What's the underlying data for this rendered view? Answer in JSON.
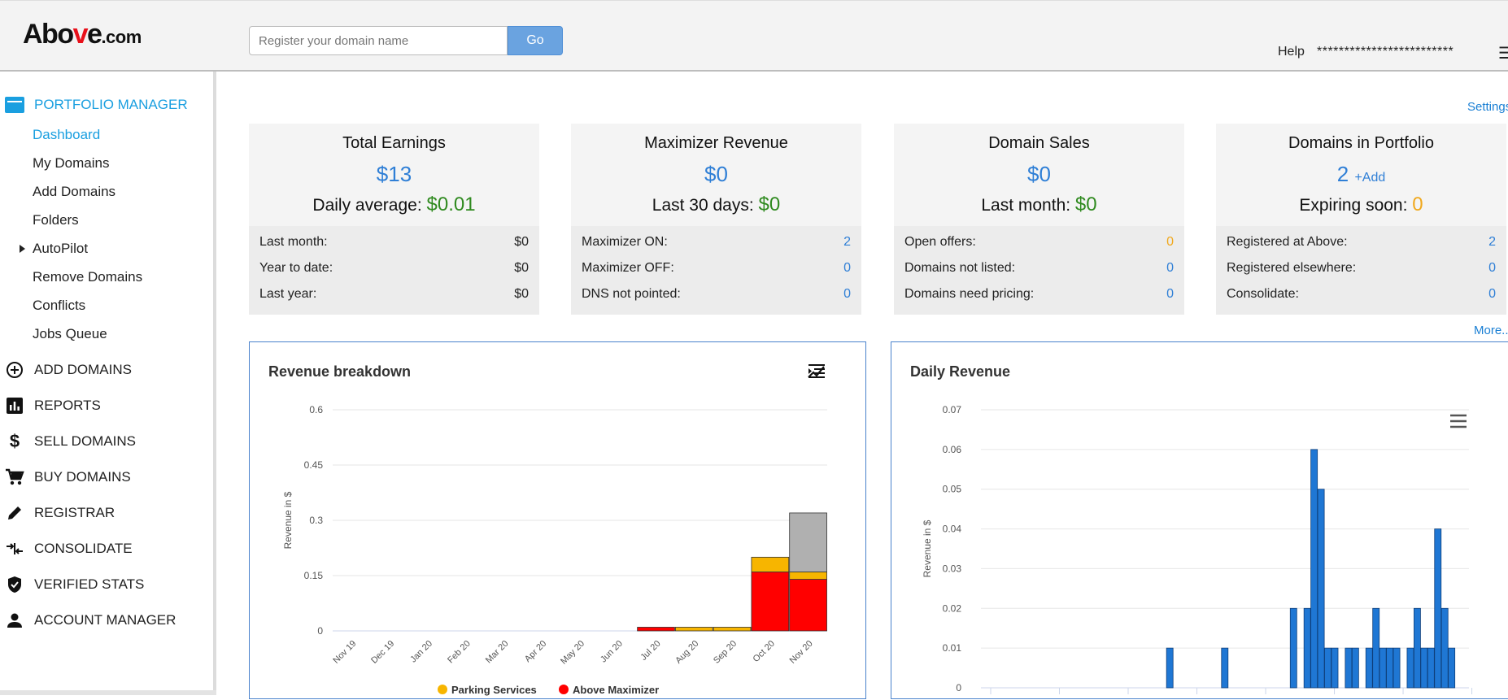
{
  "header": {
    "logo_main": "Abo",
    "logo_v": "v",
    "logo_e": "e",
    "logo_domain": ".com",
    "search_placeholder": "Register your domain name",
    "go_label": "Go",
    "help_label": "Help",
    "account_masked": "*************************"
  },
  "sidebar": {
    "portfolio_manager": "PORTFOLIO MANAGER",
    "sub_items": [
      "Dashboard",
      "My Domains",
      "Add Domains",
      "Folders",
      "AutoPilot",
      "Remove Domains",
      "Conflicts",
      "Jobs Queue"
    ],
    "sections": [
      "ADD DOMAINS",
      "REPORTS",
      "SELL DOMAINS",
      "BUY DOMAINS",
      "REGISTRAR",
      "CONSOLIDATE",
      "VERIFIED STATS",
      "ACCOUNT MANAGER"
    ]
  },
  "settings_label": "Settings",
  "more_label": "More...",
  "cards": [
    {
      "title": "Total Earnings",
      "big": "$13",
      "add": "",
      "sub_label": "Daily average: ",
      "sub_value": "$0.01",
      "sub_color": "g",
      "rows": [
        {
          "label": "Last month:",
          "value": "$0",
          "color": ""
        },
        {
          "label": "Year to date:",
          "value": "$0",
          "color": ""
        },
        {
          "label": "Last year:",
          "value": "$0",
          "color": ""
        }
      ]
    },
    {
      "title": "Maximizer Revenue",
      "big": "$0",
      "add": "",
      "sub_label": "Last 30 days: ",
      "sub_value": "$0",
      "sub_color": "g",
      "rows": [
        {
          "label": "Maximizer ON:",
          "value": "2",
          "color": "blue"
        },
        {
          "label": "Maximizer OFF:",
          "value": "0",
          "color": "blue"
        },
        {
          "label": "DNS not pointed:",
          "value": "0",
          "color": "blue"
        }
      ]
    },
    {
      "title": "Domain Sales",
      "big": "$0",
      "add": "",
      "sub_label": "Last month: ",
      "sub_value": "$0",
      "sub_color": "g",
      "rows": [
        {
          "label": "Open offers:",
          "value": "0",
          "color": "orange"
        },
        {
          "label": "Domains not listed:",
          "value": "0",
          "color": "blue"
        },
        {
          "label": "Domains need pricing:",
          "value": "0",
          "color": "blue"
        }
      ]
    },
    {
      "title": "Domains in Portfolio",
      "big": "2",
      "add": "+Add",
      "sub_label": "Expiring soon: ",
      "sub_value": "0",
      "sub_color": "o",
      "rows": [
        {
          "label": "Registered at Above:",
          "value": "2",
          "color": "blue"
        },
        {
          "label": "Registered elsewhere:",
          "value": "0",
          "color": "blue"
        },
        {
          "label": "Consolidate:",
          "value": "0",
          "color": "blue"
        }
      ]
    }
  ],
  "colors": {
    "accent": "#1a9fe0",
    "link": "#2f7fd6",
    "green": "#2f8a1f",
    "orange": "#f0a81c",
    "parking": "#f7b500",
    "maximizer": "#ff0000",
    "pending": "#b0b0b0",
    "daily_bar": "#1f77d4"
  },
  "chart_data": [
    {
      "type": "bar",
      "title": "Revenue breakdown",
      "ylabel": "Revenue in $",
      "ylim": [
        0,
        0.6
      ],
      "yticks": [
        "0",
        "0.15",
        "0.3",
        "0.45",
        "0.6"
      ],
      "ytick_values": [
        0,
        0.15,
        0.3,
        0.45,
        0.6
      ],
      "categories": [
        "Nov 19",
        "Dec 19",
        "Jan 20",
        "Feb 20",
        "Mar 20",
        "Apr 20",
        "May 20",
        "Jun 20",
        "Jul 20",
        "Aug 20",
        "Sep 20",
        "Oct 20",
        "Nov 20"
      ],
      "stacked": true,
      "series": [
        {
          "name": "Above Maximizer",
          "values": [
            0,
            0,
            0,
            0,
            0,
            0,
            0,
            0,
            0.01,
            0,
            0,
            0.16,
            0.14
          ]
        },
        {
          "name": "Parking Services",
          "values": [
            0,
            0,
            0,
            0,
            0,
            0,
            0,
            0,
            0,
            0.01,
            0.01,
            0.04,
            0.02
          ]
        },
        {
          "values": [
            0,
            0,
            0,
            0,
            0,
            0,
            0,
            0,
            0,
            0,
            0,
            0,
            0.16
          ]
        }
      ],
      "legend": [
        "Parking Services",
        "Above Maximizer"
      ],
      "legend_position": "bottom"
    },
    {
      "type": "bar",
      "title": "Daily Revenue",
      "ylabel": "Revenue in $",
      "ylim": [
        0,
        0.07
      ],
      "yticks": [
        "0",
        "0.01",
        "0.02",
        "0.03",
        "0.04",
        "0.05",
        "0.06",
        "0.07"
      ],
      "ytick_values": [
        0,
        0.01,
        0.02,
        0.03,
        0.04,
        0.05,
        0.06,
        0.07
      ],
      "bar_index": [
        27,
        35,
        45,
        47,
        48,
        49,
        50,
        51,
        53,
        54,
        56,
        57,
        58,
        59,
        60,
        62,
        63,
        64,
        65,
        66,
        67,
        68
      ],
      "values": [
        0.01,
        0.01,
        0.02,
        0.02,
        0.06,
        0.05,
        0.01,
        0.01,
        0.01,
        0.01,
        0.01,
        0.02,
        0.01,
        0.01,
        0.01,
        0.01,
        0.02,
        0.01,
        0.01,
        0.04,
        0.02,
        0.01
      ],
      "total_days": 71
    }
  ]
}
